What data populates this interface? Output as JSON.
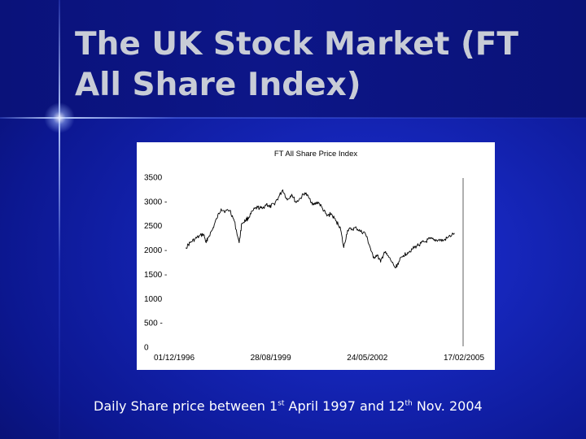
{
  "slide": {
    "title": "The UK Stock Market (FT All Share Index)",
    "caption": {
      "part1": "Daily Share price between 1",
      "sup1": "st",
      "part2": " April 1997 and 12",
      "sup2": "th",
      "part3": " Nov. 2004"
    },
    "colors": {
      "background": "#0a1590",
      "title": "#c8ccd6",
      "caption": "#ffffff",
      "line": "#000000"
    }
  },
  "chart_data": {
    "type": "line",
    "title": "FT All Share Price Index",
    "xlabel": "",
    "ylabel": "",
    "x_ticks": [
      "01/12/1996",
      "28/08/1999",
      "24/05/2002",
      "17/02/2005"
    ],
    "y_ticks": [
      "3500",
      "3000 -",
      "2500",
      "2000 -",
      "1500 -",
      "1000",
      "500 -",
      "0"
    ],
    "ylim": [
      0,
      3500
    ],
    "grid": false,
    "series": [
      {
        "x": [
          "1997-04-01",
          "1997-05-15",
          "1997-07-01",
          "1997-08-15",
          "1997-10-01",
          "1997-10-28",
          "1997-11-15",
          "1998-01-01",
          "1998-02-15",
          "1998-04-01",
          "1998-05-15",
          "1998-07-01",
          "1998-08-15",
          "1998-10-05",
          "1998-11-01",
          "1998-12-15",
          "1999-01-15",
          "1999-03-01",
          "1999-04-15",
          "1999-06-01",
          "1999-07-15",
          "1999-08-15",
          "1999-10-01",
          "1999-11-15",
          "1999-12-30",
          "2000-02-15",
          "2000-04-01",
          "2000-05-15",
          "2000-07-01",
          "2000-08-15",
          "2000-10-01",
          "2000-11-15",
          "2001-01-01",
          "2001-02-15",
          "2001-04-01",
          "2001-05-15",
          "2001-07-01",
          "2001-08-15",
          "2001-09-21",
          "2001-11-01",
          "2001-12-15",
          "2002-02-01",
          "2002-03-15",
          "2002-05-01",
          "2002-06-15",
          "2002-07-24",
          "2002-09-01",
          "2002-10-09",
          "2002-11-15",
          "2003-01-01",
          "2003-03-12",
          "2003-04-15",
          "2003-06-01",
          "2003-07-15",
          "2003-09-01",
          "2003-10-15",
          "2003-12-01",
          "2004-01-15",
          "2004-03-01",
          "2004-04-15",
          "2004-06-01",
          "2004-07-15",
          "2004-09-01",
          "2004-11-12"
        ],
        "values": [
          2050,
          2150,
          2220,
          2280,
          2330,
          2150,
          2250,
          2420,
          2650,
          2850,
          2800,
          2820,
          2600,
          2150,
          2550,
          2620,
          2680,
          2820,
          2880,
          2850,
          2950,
          2880,
          2950,
          3080,
          3240,
          3030,
          3150,
          2980,
          3070,
          3180,
          3060,
          2930,
          2990,
          2850,
          2700,
          2750,
          2600,
          2480,
          2050,
          2410,
          2430,
          2450,
          2380,
          2350,
          2100,
          1840,
          1900,
          1750,
          1960,
          1850,
          1630,
          1760,
          1890,
          1950,
          2020,
          2080,
          2140,
          2170,
          2230,
          2200,
          2210,
          2190,
          2250,
          2350
        ]
      }
    ]
  }
}
